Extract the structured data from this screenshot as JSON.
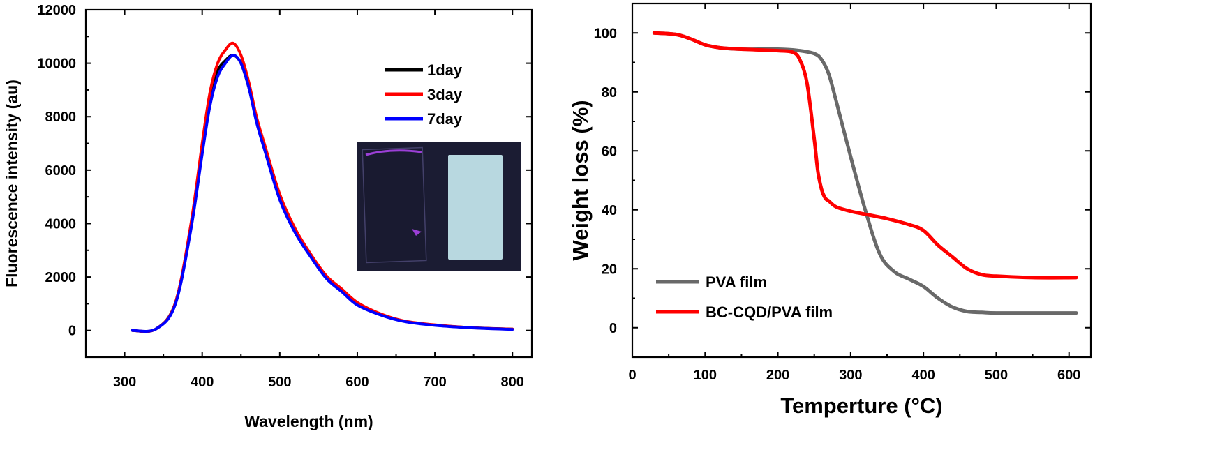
{
  "chart_data": [
    {
      "type": "line",
      "title": "",
      "xlabel": "Wavelength (nm)",
      "ylabel": "Fluorescence intensity (au)",
      "xlim": [
        250,
        825
      ],
      "ylim": [
        -1000,
        12000
      ],
      "xticks": [
        "300",
        "400",
        "500",
        "600",
        "700",
        "800"
      ],
      "yticks": [
        "0",
        "2000",
        "4000",
        "6000",
        "8000",
        "10000",
        "12000"
      ],
      "legend_position": "top-right",
      "inset_image": "photograph of two film samples under UV light",
      "series": [
        {
          "name": "1day",
          "color": "#000000",
          "x": [
            310,
            340,
            365,
            385,
            400,
            410,
            420,
            430,
            440,
            450,
            460,
            470,
            480,
            500,
            520,
            540,
            560,
            580,
            600,
            630,
            660,
            700,
            750,
            800
          ],
          "y": [
            0,
            50,
            1000,
            3800,
            6800,
            8600,
            9700,
            10100,
            10300,
            10000,
            9100,
            7900,
            6900,
            5000,
            3700,
            2800,
            2000,
            1500,
            1000,
            600,
            350,
            200,
            100,
            50
          ]
        },
        {
          "name": "3day",
          "color": "#ff0000",
          "x": [
            310,
            340,
            365,
            385,
            400,
            410,
            420,
            430,
            440,
            450,
            460,
            470,
            480,
            500,
            520,
            540,
            560,
            580,
            600,
            630,
            660,
            700,
            750,
            800
          ],
          "y": [
            0,
            50,
            1000,
            3900,
            7000,
            8900,
            10000,
            10500,
            10750,
            10300,
            9300,
            8000,
            7000,
            5100,
            3800,
            2850,
            2050,
            1550,
            1050,
            620,
            360,
            210,
            100,
            50
          ]
        },
        {
          "name": "7day",
          "color": "#0000ff",
          "x": [
            310,
            340,
            365,
            385,
            400,
            410,
            420,
            430,
            440,
            450,
            460,
            470,
            480,
            500,
            520,
            540,
            560,
            580,
            600,
            630,
            660,
            700,
            750,
            800
          ],
          "y": [
            0,
            50,
            950,
            3700,
            6600,
            8400,
            9500,
            10000,
            10300,
            10000,
            9100,
            7800,
            6800,
            4900,
            3650,
            2750,
            1950,
            1450,
            950,
            580,
            340,
            190,
            95,
            40
          ]
        }
      ]
    },
    {
      "type": "line",
      "title": "",
      "xlabel": "Temperture (°C)",
      "ylabel": "Weight loss (%)",
      "xlim": [
        0,
        630
      ],
      "ylim": [
        -10,
        110
      ],
      "xticks": [
        "0",
        "100",
        "200",
        "300",
        "400",
        "500",
        "600"
      ],
      "yticks": [
        "0",
        "20",
        "40",
        "60",
        "80",
        "100"
      ],
      "legend_position": "bottom-left",
      "series": [
        {
          "name": "PVA film",
          "color": "#696969",
          "x": [
            30,
            60,
            80,
            100,
            120,
            150,
            200,
            230,
            250,
            260,
            270,
            280,
            300,
            320,
            340,
            360,
            380,
            400,
            420,
            440,
            460,
            480,
            500,
            550,
            610
          ],
          "y": [
            100,
            99.5,
            98,
            96,
            95,
            94.5,
            94.5,
            94,
            93,
            91,
            86,
            77,
            58,
            40,
            25,
            19,
            16.5,
            14,
            10,
            7,
            5.5,
            5.2,
            5,
            5,
            5
          ]
        },
        {
          "name": "BC-CQD/PVA film",
          "color": "#ff0000",
          "x": [
            30,
            60,
            80,
            100,
            120,
            150,
            200,
            220,
            230,
            240,
            250,
            255,
            260,
            265,
            270,
            280,
            300,
            320,
            350,
            380,
            400,
            420,
            440,
            460,
            480,
            500,
            550,
            610
          ],
          "y": [
            100,
            99.5,
            98,
            96,
            95,
            94.5,
            94,
            93.5,
            91,
            83,
            64,
            53,
            47,
            44,
            43,
            41,
            39.5,
            38.5,
            37,
            35,
            33,
            28,
            24,
            20,
            18,
            17.5,
            17,
            17
          ]
        }
      ]
    }
  ]
}
